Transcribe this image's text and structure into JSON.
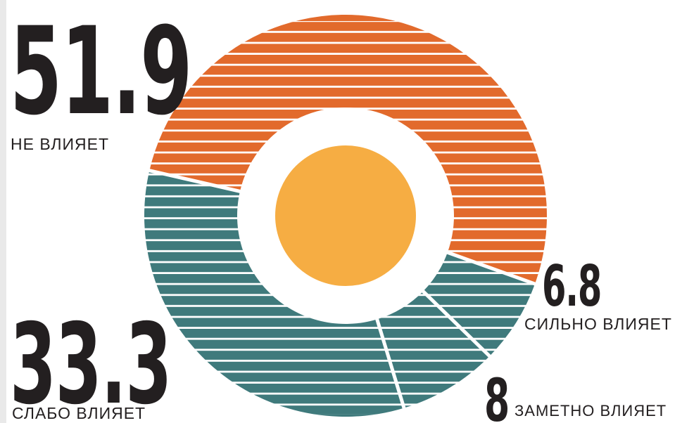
{
  "chart_data": {
    "type": "pie",
    "categories": [
      "НЕ ВЛИЯЕТ",
      "СЛАБО ВЛИЯЕТ",
      "ЗАМЕТНО ВЛИЯЕТ",
      "СИЛЬНО ВЛИЯЕТ"
    ],
    "values": [
      51.9,
      33.3,
      8,
      6.8
    ],
    "value_labels": [
      "51.9",
      "33.3",
      "8",
      "6.8"
    ],
    "colors": [
      "#e26a2c",
      "#3f7a7c",
      "#3f7a7c",
      "#3f7a7c"
    ],
    "center_color": "#f6ad43",
    "style": "donut, horizontal white stripes"
  }
}
